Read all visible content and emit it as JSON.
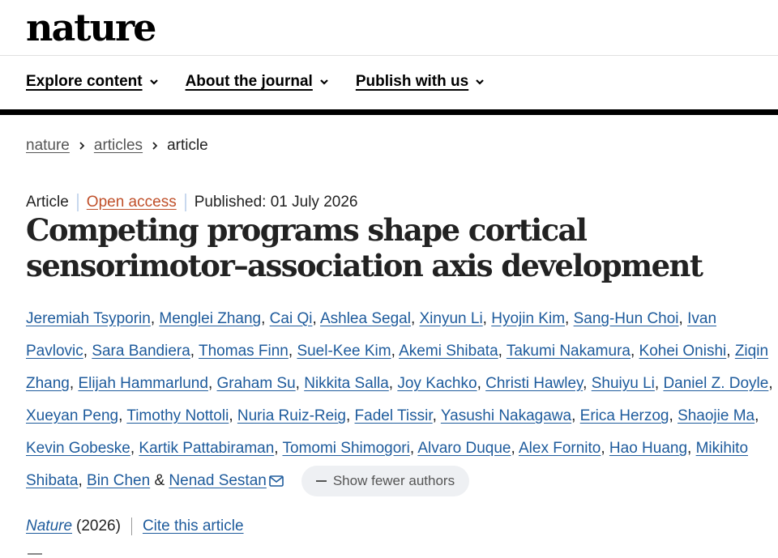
{
  "header": {
    "logo": "nature"
  },
  "nav": {
    "items": [
      {
        "label": "Explore content"
      },
      {
        "label": "About the journal"
      },
      {
        "label": "Publish with us"
      }
    ]
  },
  "breadcrumb": {
    "items": [
      "nature",
      "articles",
      "article"
    ]
  },
  "article": {
    "type": "Article",
    "access": "Open access",
    "published": "Published: 01 July 2026",
    "title": "Competing programs shape cortical sensorimotor–association axis development",
    "authors": [
      "Jeremiah Tsyporin",
      "Menglei Zhang",
      "Cai Qi",
      "Ashlea Segal",
      "Xinyun Li",
      "Hyojin Kim",
      "Sang-Hun Choi",
      "Ivan Pavlovic",
      "Sara Bandiera",
      "Thomas Finn",
      "Suel-Kee Kim",
      "Akemi Shibata",
      "Takumi Nakamura",
      "Kohei Onishi",
      "Ziqin Zhang",
      "Elijah Hammarlund",
      "Graham Su",
      "Nikkita Salla",
      "Joy Kachko",
      "Christi Hawley",
      "Shuiyu Li",
      "Daniel Z. Doyle",
      "Xueyan Peng",
      "Timothy Nottoli",
      "Nuria Ruiz-Reig",
      "Fadel Tissir",
      "Yasushi Nakagawa",
      "Erica Herzog",
      "Shaojie Ma",
      "Kevin Gobeske",
      "Kartik Pattabiraman",
      "Tomomi Shimogori",
      "Alvaro Duque",
      "Alex Fornito",
      "Hao Huang",
      "Mikihito Shibata",
      "Bin Chen",
      "Nenad Sestan"
    ],
    "author_separator": ", ",
    "last_author_separator": " & ",
    "show_fewer_label": "Show fewer authors",
    "journal": "Nature",
    "year": "(2026)",
    "cite_label": "Cite this article"
  },
  "icons": {
    "nav_dropdown": "chevron-down-icon",
    "breadcrumb_separator": "chevron-right-icon",
    "corresponding_author": "mail-icon",
    "show_fewer": "minus-icon"
  },
  "colors": {
    "link": "#1e5b9c",
    "open_access": "#c0502a",
    "text": "#222222",
    "button_bg": "#eef0f3"
  }
}
